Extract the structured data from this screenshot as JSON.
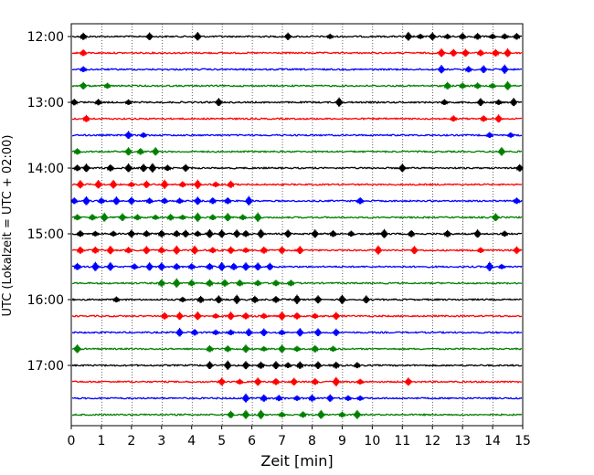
{
  "chart_data": {
    "type": "line",
    "title": "",
    "xlabel": "Zeit  [min]",
    "ylabel": "UTC (Lokalzeit = UTC + 02:00)",
    "xlim": [
      0,
      15
    ],
    "x_ticks": [
      "0",
      "1",
      "2",
      "3",
      "4",
      "5",
      "6",
      "7",
      "8",
      "9",
      "10",
      "11",
      "12",
      "13",
      "14",
      "15"
    ],
    "y_ticks": [
      "12:00",
      "13:00",
      "14:00",
      "15:00",
      "16:00",
      "17:00"
    ],
    "grid": "vertical dotted lines at each minute",
    "trace_interval_minutes": 15,
    "trace_colors": [
      "#000000",
      "#ff0000",
      "#0000ff",
      "#008000"
    ],
    "traces": [
      {
        "start": "12:00",
        "color": "#000000",
        "events": [
          0.4,
          2.6,
          4.2,
          7.2,
          8.6,
          11.2,
          11.6,
          12.0,
          12.5,
          13.0,
          13.5,
          14.0,
          14.4,
          14.8
        ]
      },
      {
        "start": "12:15",
        "color": "#ff0000",
        "events": [
          0.4,
          12.3,
          12.7,
          13.1,
          13.6,
          14.1,
          14.5
        ]
      },
      {
        "start": "12:30",
        "color": "#0000ff",
        "events": [
          0.4,
          12.3,
          13.2,
          13.7,
          14.4
        ]
      },
      {
        "start": "12:45",
        "color": "#008000",
        "events": [
          0.4,
          1.2,
          12.5,
          13.0,
          13.5,
          14.0,
          14.5
        ]
      },
      {
        "start": "13:00",
        "color": "#000000",
        "events": [
          0.1,
          0.9,
          1.9,
          4.9,
          8.9,
          12.4,
          13.6,
          14.2,
          14.7
        ]
      },
      {
        "start": "13:15",
        "color": "#ff0000",
        "events": [
          0.5,
          12.7,
          13.7,
          14.2
        ]
      },
      {
        "start": "13:30",
        "color": "#0000ff",
        "events": [
          1.9,
          2.4,
          13.9,
          14.6
        ]
      },
      {
        "start": "13:45",
        "color": "#008000",
        "events": [
          0.2,
          1.9,
          2.3,
          2.8,
          14.3
        ]
      },
      {
        "start": "14:00",
        "color": "#000000",
        "events": [
          0.2,
          0.5,
          1.3,
          1.9,
          2.4,
          2.7,
          3.2,
          3.8,
          11.0,
          14.9
        ]
      },
      {
        "start": "14:15",
        "color": "#ff0000",
        "events": [
          0.3,
          0.9,
          1.4,
          2.0,
          2.5,
          3.1,
          3.7,
          4.2,
          4.8,
          5.3
        ]
      },
      {
        "start": "14:30",
        "color": "#0000ff",
        "events": [
          0.1,
          0.5,
          1.0,
          1.5,
          2.0,
          2.6,
          3.1,
          3.6,
          4.2,
          4.7,
          5.2,
          5.9,
          9.6,
          14.8
        ]
      },
      {
        "start": "14:45",
        "color": "#008000",
        "events": [
          0.2,
          0.7,
          1.1,
          1.7,
          2.2,
          2.8,
          3.3,
          3.7,
          4.2,
          4.7,
          5.2,
          5.7,
          6.2,
          14.1
        ]
      },
      {
        "start": "15:00",
        "color": "#000000",
        "events": [
          0.3,
          0.8,
          1.4,
          2.0,
          2.5,
          3.0,
          3.5,
          3.8,
          4.2,
          4.6,
          5.0,
          5.5,
          5.8,
          6.3,
          7.2,
          8.1,
          8.7,
          9.3,
          10.4,
          11.3,
          12.5,
          13.5,
          14.4
        ]
      },
      {
        "start": "15:15",
        "color": "#ff0000",
        "events": [
          0.3,
          0.8,
          1.3,
          1.9,
          2.5,
          3.0,
          3.5,
          4.1,
          4.7,
          5.3,
          5.8,
          6.4,
          7.0,
          7.6,
          10.2,
          11.4,
          13.6,
          14.8
        ]
      },
      {
        "start": "15:30",
        "color": "#0000ff",
        "events": [
          0.2,
          0.8,
          1.3,
          2.1,
          2.6,
          3.0,
          3.5,
          4.0,
          4.6,
          5.0,
          5.4,
          5.8,
          6.2,
          6.6,
          13.9,
          14.3
        ]
      },
      {
        "start": "15:45",
        "color": "#008000",
        "events": [
          3.0,
          3.5,
          4.0,
          4.6,
          5.1,
          5.6,
          6.2,
          6.8,
          7.3
        ]
      },
      {
        "start": "16:00",
        "color": "#000000",
        "events": [
          1.5,
          3.7,
          4.3,
          4.9,
          5.5,
          6.1,
          6.8,
          7.5,
          8.2,
          9.0,
          9.8
        ]
      },
      {
        "start": "16:15",
        "color": "#ff0000",
        "events": [
          3.1,
          3.6,
          4.2,
          4.8,
          5.3,
          5.8,
          6.4,
          7.0,
          7.5,
          8.1,
          8.8
        ]
      },
      {
        "start": "16:30",
        "color": "#0000ff",
        "events": [
          3.6,
          4.1,
          4.8,
          5.3,
          5.9,
          6.4,
          7.0,
          7.6,
          8.2,
          8.8
        ]
      },
      {
        "start": "16:45",
        "color": "#008000",
        "events": [
          0.2,
          4.6,
          5.2,
          5.8,
          6.4,
          7.0,
          7.5,
          8.1,
          8.7
        ]
      },
      {
        "start": "17:00",
        "color": "#000000",
        "events": [
          4.6,
          5.2,
          5.8,
          6.3,
          6.8,
          7.2,
          7.6,
          8.2,
          8.8,
          9.5
        ]
      },
      {
        "start": "17:15",
        "color": "#ff0000",
        "events": [
          5.0,
          5.6,
          6.2,
          6.8,
          7.4,
          8.1,
          8.8,
          9.6,
          11.2
        ]
      },
      {
        "start": "17:30",
        "color": "#0000ff",
        "events": [
          5.8,
          6.4,
          6.9,
          7.5,
          8.0,
          8.6,
          9.2,
          9.6
        ]
      },
      {
        "start": "17:45",
        "color": "#008000",
        "events": [
          5.3,
          5.8,
          6.3,
          7.0,
          7.7,
          8.3,
          9.0,
          9.5
        ]
      }
    ]
  }
}
